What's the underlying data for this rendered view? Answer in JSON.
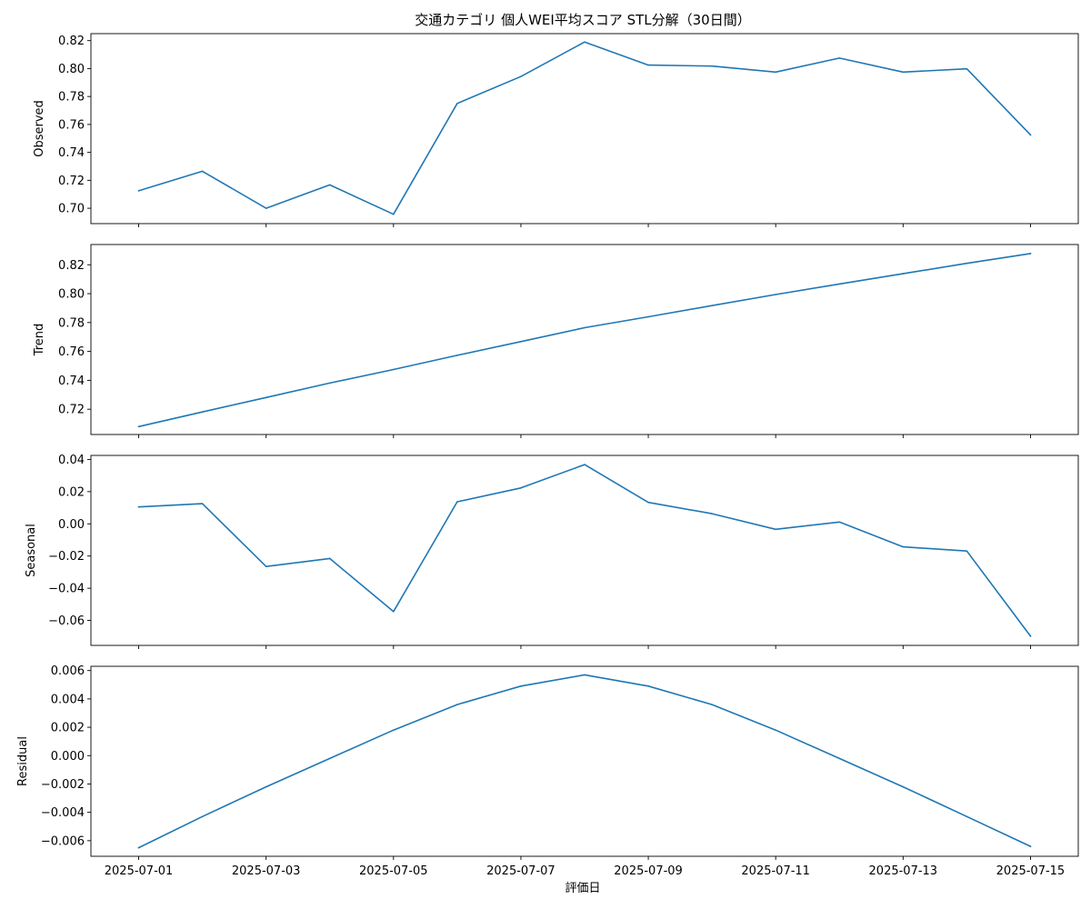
{
  "chart_data": {
    "type": "line",
    "title": "交通カテゴリ 個人WEI平均スコア STL分解（30日間）",
    "xlabel": "評価日",
    "x": [
      "2025-07-01",
      "2025-07-02",
      "2025-07-03",
      "2025-07-04",
      "2025-07-05",
      "2025-07-06",
      "2025-07-07",
      "2025-07-08",
      "2025-07-09",
      "2025-07-10",
      "2025-07-11",
      "2025-07-12",
      "2025-07-13",
      "2025-07-14",
      "2025-07-15"
    ],
    "x_ticks": [
      "2025-07-01",
      "2025-07-03",
      "2025-07-05",
      "2025-07-07",
      "2025-07-09",
      "2025-07-11",
      "2025-07-13",
      "2025-07-15"
    ],
    "line_color": "#1f77b4",
    "grid": false,
    "shared_x": true,
    "panels": [
      {
        "ylabel": "Observed",
        "ylim": [
          0.689,
          0.825
        ],
        "y_ticks": [
          "0.70",
          "0.72",
          "0.74",
          "0.76",
          "0.78",
          "0.80",
          "0.82"
        ],
        "y_tick_values": [
          0.7,
          0.72,
          0.74,
          0.76,
          0.78,
          0.8,
          0.82
        ],
        "values": [
          0.7125,
          0.7265,
          0.7,
          0.7167,
          0.6957,
          0.775,
          0.7943,
          0.819,
          0.8025,
          0.8018,
          0.7975,
          0.8075,
          0.7975,
          0.7998,
          0.7525
        ]
      },
      {
        "ylabel": "Trend",
        "ylim": [
          0.7025,
          0.834
        ],
        "y_ticks": [
          "0.72",
          "0.74",
          "0.76",
          "0.78",
          "0.80",
          "0.82"
        ],
        "y_tick_values": [
          0.72,
          0.74,
          0.76,
          0.78,
          0.8,
          0.82
        ],
        "values": [
          0.708,
          0.7181,
          0.7281,
          0.7381,
          0.7475,
          0.7573,
          0.7668,
          0.7764,
          0.784,
          0.7917,
          0.7994,
          0.8067,
          0.8138,
          0.821,
          0.8278
        ]
      },
      {
        "ylabel": "Seasonal",
        "ylim": [
          -0.0755,
          0.0425
        ],
        "y_ticks": [
          "−0.06",
          "−0.04",
          "−0.02",
          "0.00",
          "0.02",
          "0.04"
        ],
        "y_tick_values": [
          -0.06,
          -0.04,
          -0.02,
          0.0,
          0.02,
          0.04
        ],
        "values": [
          0.0105,
          0.0125,
          -0.0265,
          -0.0215,
          -0.0545,
          0.0137,
          0.0223,
          0.0368,
          0.0133,
          0.0063,
          -0.0034,
          0.0011,
          -0.0143,
          -0.0169,
          -0.0698
        ]
      },
      {
        "ylabel": "Residual",
        "ylim": [
          -0.0071,
          0.0063
        ],
        "y_ticks": [
          "−0.006",
          "−0.004",
          "−0.002",
          "0.000",
          "0.002",
          "0.004",
          "0.006"
        ],
        "y_tick_values": [
          -0.006,
          -0.004,
          -0.002,
          0.0,
          0.002,
          0.004,
          0.006
        ],
        "values": [
          -0.0065,
          -0.0043,
          -0.0022,
          -0.0002,
          0.0018,
          0.0036,
          0.0049,
          0.0057,
          0.0049,
          0.0036,
          0.0018,
          -0.0002,
          -0.0022,
          -0.0043,
          -0.0064
        ]
      }
    ]
  }
}
